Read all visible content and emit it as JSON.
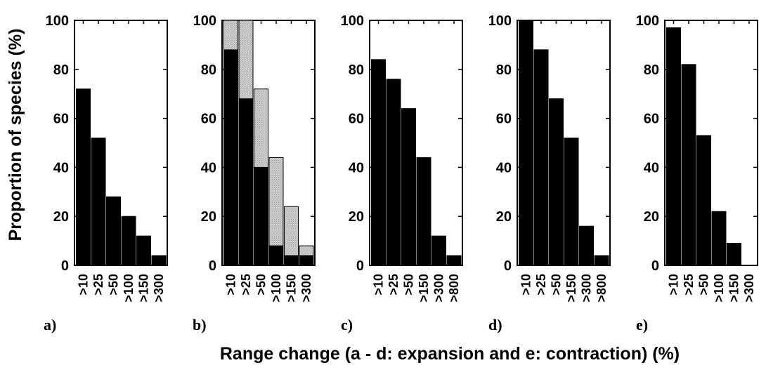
{
  "figure": {
    "ylabel": "Proportion of species (%)",
    "xlabel": "Range change (a - d: expansion and e: contraction) (%)"
  },
  "colors": {
    "primary": "#000000",
    "secondary_fill": "#d0d0d0",
    "secondary_hatch": "#9a9a9a"
  },
  "chart_data": [
    {
      "type": "bar",
      "label": "a)",
      "categories": [
        ">10",
        ">25",
        ">50",
        ">100",
        ">150",
        ">300"
      ],
      "values": [
        72,
        52,
        28,
        20,
        12,
        4
      ],
      "ylim": [
        0,
        100
      ],
      "yticks": [
        0,
        20,
        40,
        60,
        80,
        100
      ]
    },
    {
      "type": "bar",
      "label": "b)",
      "stacked": true,
      "categories": [
        ">10",
        ">25",
        ">50",
        ">100",
        ">150",
        ">300"
      ],
      "series": [
        {
          "values": [
            88,
            68,
            40,
            8,
            4,
            4
          ],
          "color": "#000000"
        },
        {
          "values": [
            12,
            32,
            32,
            36,
            20,
            4
          ],
          "color": "#d0d0d0"
        }
      ],
      "ylim": [
        0,
        100
      ],
      "yticks": [
        0,
        20,
        40,
        60,
        80,
        100
      ]
    },
    {
      "type": "bar",
      "label": "c)",
      "categories": [
        ">10",
        ">25",
        ">50",
        ">150",
        ">300",
        ">800"
      ],
      "values": [
        84,
        76,
        64,
        44,
        12,
        4
      ],
      "ylim": [
        0,
        100
      ],
      "yticks": [
        0,
        20,
        40,
        60,
        80,
        100
      ]
    },
    {
      "type": "bar",
      "label": "d)",
      "categories": [
        ">10",
        ">25",
        ">50",
        ">150",
        ">300",
        ">800"
      ],
      "values": [
        100,
        88,
        68,
        52,
        16,
        4
      ],
      "ylim": [
        0,
        100
      ],
      "yticks": [
        0,
        20,
        40,
        60,
        80,
        100
      ]
    },
    {
      "type": "bar",
      "label": "e)",
      "categories": [
        ">10",
        ">25",
        ">50",
        ">100",
        ">150",
        ">300"
      ],
      "values": [
        97,
        82,
        53,
        22,
        9,
        0
      ],
      "ylim": [
        0,
        100
      ],
      "yticks": [
        0,
        20,
        40,
        60,
        80,
        100
      ]
    }
  ]
}
